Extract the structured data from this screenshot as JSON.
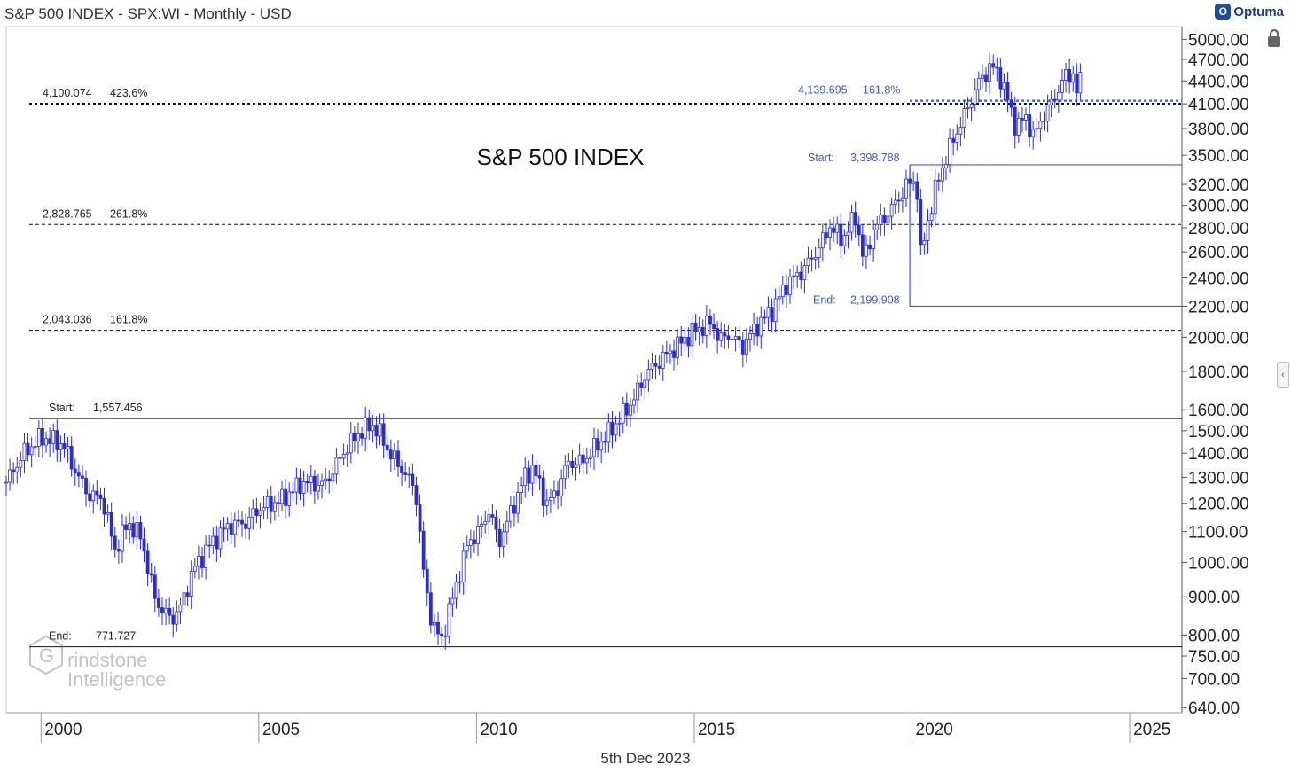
{
  "header": {
    "title": "S&P 500 INDEX - SPX:WI - Monthly - USD",
    "brand": "Optuma"
  },
  "footer": {
    "date": "5th Dec 2023"
  },
  "watermark": {
    "line1": "rindstone",
    "line2": "Intelligence",
    "logo_letter": "G"
  },
  "colors": {
    "candles": "#2a2ad8",
    "fib_lines": "#3a5ec8",
    "axis": "#555555",
    "text": "#222222"
  },
  "chart_data": {
    "type": "line",
    "title": "S&P 500 INDEX",
    "xlabel": "",
    "ylabel": "",
    "y_scale": "log",
    "ylim": [
      630,
      5200
    ],
    "xlim": [
      1999.2,
      2026.2
    ],
    "y_ticks": [
      "5000.00",
      "4700.00",
      "4400.00",
      "4100.00",
      "3800.00",
      "3500.00",
      "3200.00",
      "3000.00",
      "2800.00",
      "2600.00",
      "2400.00",
      "2200.00",
      "2000.00",
      "1800.00",
      "1600.00",
      "1500.00",
      "1400.00",
      "1300.00",
      "1200.00",
      "1100.00",
      "1000.00",
      "900.00",
      "800.00",
      "750.00",
      "700.00",
      "640.00"
    ],
    "x_ticks": [
      "2000",
      "2005",
      "2010",
      "2015",
      "2020",
      "2025"
    ],
    "series": [
      {
        "name": "",
        "x": [
          1999.2,
          1999.6,
          2000.0,
          2000.5,
          2000.8,
          2001.1,
          2001.4,
          2001.7,
          2002.0,
          2002.3,
          2002.6,
          2002.8,
          2003.0,
          2003.2,
          2003.5,
          2003.9,
          2004.3,
          2004.7,
          2005.0,
          2005.5,
          2006.0,
          2006.5,
          2007.0,
          2007.3,
          2007.6,
          2007.8,
          2008.0,
          2008.3,
          2008.6,
          2008.8,
          2009.0,
          2009.2,
          2009.5,
          2009.8,
          2010.1,
          2010.3,
          2010.5,
          2010.8,
          2011.1,
          2011.3,
          2011.6,
          2011.8,
          2012.1,
          2012.4,
          2012.7,
          2013.0,
          2013.3,
          2013.6,
          2013.9,
          2014.3,
          2014.7,
          2015.0,
          2015.4,
          2015.6,
          2015.8,
          2016.1,
          2016.4,
          2016.8,
          2017.1,
          2017.5,
          2017.9,
          2018.1,
          2018.4,
          2018.7,
          2018.9,
          2019.1,
          2019.5,
          2019.9,
          2020.1,
          2020.2,
          2020.4,
          2020.6,
          2020.9,
          2021.2,
          2021.5,
          2021.8,
          2022.0,
          2022.2,
          2022.4,
          2022.6,
          2022.8,
          2023.0,
          2023.2,
          2023.5,
          2023.7,
          2023.8,
          2023.92
        ],
        "values": [
          1280,
          1400,
          1470,
          1440,
          1320,
          1230,
          1220,
          1040,
          1130,
          1080,
          900,
          860,
          840,
          870,
          980,
          1060,
          1120,
          1130,
          1180,
          1210,
          1280,
          1270,
          1420,
          1490,
          1530,
          1480,
          1400,
          1330,
          1250,
          950,
          820,
          790,
          920,
          1060,
          1110,
          1180,
          1060,
          1170,
          1300,
          1340,
          1200,
          1230,
          1360,
          1360,
          1420,
          1480,
          1560,
          1650,
          1790,
          1880,
          1970,
          2040,
          2090,
          1980,
          2020,
          1940,
          2060,
          2180,
          2350,
          2460,
          2650,
          2820,
          2700,
          2900,
          2520,
          2780,
          2950,
          3200,
          3250,
          2580,
          2920,
          3250,
          3620,
          3950,
          4350,
          4600,
          4500,
          4150,
          3800,
          3950,
          3700,
          3950,
          4100,
          4450,
          4500,
          4200,
          4560
        ]
      }
    ],
    "annotations": [
      {
        "label": "4,100.074",
        "pct": "423.6%",
        "value": 4100.074,
        "style": "dotted"
      },
      {
        "label": "2,828.765",
        "pct": "261.8%",
        "value": 2828.765,
        "style": "dashed"
      },
      {
        "label": "2,043.036",
        "pct": "161.8%",
        "value": 2043.036,
        "style": "dashed"
      },
      {
        "label": "Start:",
        "pct": "1,557.456",
        "value": 1557.456,
        "style": "solid"
      },
      {
        "label": "End:",
        "pct": "771.727",
        "value": 771.727,
        "style": "solid"
      }
    ],
    "right_fib": {
      "level": {
        "label": "4,139.695",
        "pct": "161.8%",
        "value": 4139.695
      },
      "start": {
        "label": "Start:",
        "value_text": "3,398.788",
        "value": 3398.788
      },
      "end": {
        "label": "End:",
        "value_text": "2,199.908",
        "value": 2199.908
      },
      "from_x": 2019.95
    }
  }
}
